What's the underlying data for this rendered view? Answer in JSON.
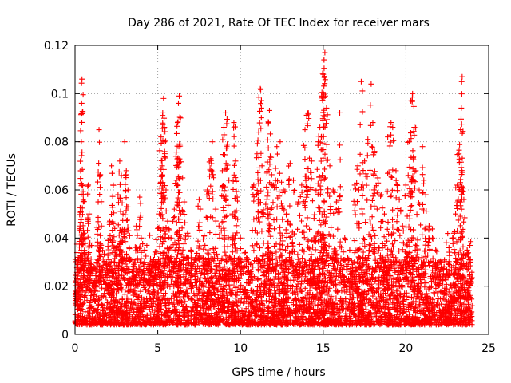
{
  "chart_data": {
    "type": "scatter",
    "title": "Day 286 of 2021, Rate Of TEC Index for receiver mars",
    "xlabel": "GPS time / hours",
    "ylabel": "ROTI / TECUs",
    "xlim": [
      0,
      25
    ],
    "ylim": [
      0,
      0.12
    ],
    "xticks": [
      0,
      5,
      10,
      15,
      20,
      25
    ],
    "xtick_labels": [
      "0",
      "5",
      "10",
      "15",
      "20",
      "25"
    ],
    "yticks": [
      0,
      0.02,
      0.04,
      0.06,
      0.08,
      0.1,
      0.12
    ],
    "ytick_labels": [
      "0",
      "0.02",
      "0.04",
      "0.06",
      "0.08",
      "0.1",
      "0.12"
    ],
    "grid": true,
    "legend": "none",
    "marker": "plus",
    "series_color": "#ff0000",
    "points": [
      [
        0.1,
        0.028
      ],
      [
        0.2,
        0.032
      ],
      [
        0.3,
        0.045
      ],
      [
        0.35,
        0.068
      ],
      [
        0.38,
        0.08
      ],
      [
        0.4,
        0.096
      ],
      [
        0.42,
        0.106
      ],
      [
        0.5,
        0.056
      ],
      [
        0.55,
        0.042
      ],
      [
        0.6,
        0.034
      ],
      [
        0.8,
        0.062
      ],
      [
        0.85,
        0.05
      ],
      [
        0.9,
        0.038
      ],
      [
        1.0,
        0.027
      ],
      [
        1.2,
        0.022
      ],
      [
        1.3,
        0.03
      ],
      [
        1.4,
        0.055
      ],
      [
        1.45,
        0.085
      ],
      [
        1.5,
        0.066
      ],
      [
        1.6,
        0.045
      ],
      [
        1.8,
        0.033
      ],
      [
        2.0,
        0.039
      ],
      [
        2.1,
        0.047
      ],
      [
        2.2,
        0.07
      ],
      [
        2.3,
        0.062
      ],
      [
        2.4,
        0.044
      ],
      [
        2.5,
        0.036
      ],
      [
        2.6,
        0.058
      ],
      [
        2.7,
        0.072
      ],
      [
        2.8,
        0.066
      ],
      [
        2.9,
        0.05
      ],
      [
        3.0,
        0.08
      ],
      [
        3.1,
        0.068
      ],
      [
        3.2,
        0.06
      ],
      [
        3.3,
        0.041
      ],
      [
        3.5,
        0.031
      ],
      [
        3.7,
        0.045
      ],
      [
        3.9,
        0.057
      ],
      [
        4.0,
        0.04
      ],
      [
        4.2,
        0.035
      ],
      [
        4.4,
        0.029
      ],
      [
        4.6,
        0.026
      ],
      [
        4.8,
        0.033
      ],
      [
        5.0,
        0.044
      ],
      [
        5.1,
        0.05
      ],
      [
        5.2,
        0.082
      ],
      [
        5.25,
        0.066
      ],
      [
        5.3,
        0.092
      ],
      [
        5.35,
        0.098
      ],
      [
        5.4,
        0.086
      ],
      [
        5.5,
        0.06
      ],
      [
        5.6,
        0.047
      ],
      [
        5.8,
        0.04
      ],
      [
        6.0,
        0.052
      ],
      [
        6.1,
        0.074
      ],
      [
        6.2,
        0.088
      ],
      [
        6.25,
        0.096
      ],
      [
        6.3,
        0.099
      ],
      [
        6.35,
        0.079
      ],
      [
        6.5,
        0.065
      ],
      [
        6.6,
        0.055
      ],
      [
        6.8,
        0.042
      ],
      [
        7.0,
        0.035
      ],
      [
        7.2,
        0.03
      ],
      [
        7.5,
        0.056
      ],
      [
        7.8,
        0.041
      ],
      [
        8.0,
        0.06
      ],
      [
        8.2,
        0.073
      ],
      [
        8.3,
        0.08
      ],
      [
        8.5,
        0.052
      ],
      [
        8.7,
        0.045
      ],
      [
        8.9,
        0.068
      ],
      [
        9.0,
        0.086
      ],
      [
        9.1,
        0.092
      ],
      [
        9.2,
        0.079
      ],
      [
        9.3,
        0.064
      ],
      [
        9.5,
        0.05
      ],
      [
        9.6,
        0.088
      ],
      [
        9.7,
        0.072
      ],
      [
        9.8,
        0.057
      ],
      [
        10.0,
        0.04
      ],
      [
        10.3,
        0.034
      ],
      [
        10.6,
        0.029
      ],
      [
        10.8,
        0.062
      ],
      [
        11.0,
        0.075
      ],
      [
        11.1,
        0.084
      ],
      [
        11.2,
        0.102
      ],
      [
        11.3,
        0.07
      ],
      [
        11.4,
        0.05
      ],
      [
        11.6,
        0.067
      ],
      [
        11.7,
        0.088
      ],
      [
        11.75,
        0.093
      ],
      [
        11.8,
        0.074
      ],
      [
        12.0,
        0.062
      ],
      [
        12.2,
        0.078
      ],
      [
        12.4,
        0.08
      ],
      [
        12.6,
        0.06
      ],
      [
        12.8,
        0.05
      ],
      [
        13.0,
        0.071
      ],
      [
        13.2,
        0.064
      ],
      [
        13.5,
        0.055
      ],
      [
        13.7,
        0.062
      ],
      [
        13.9,
        0.085
      ],
      [
        14.0,
        0.091
      ],
      [
        14.1,
        0.092
      ],
      [
        14.3,
        0.072
      ],
      [
        14.5,
        0.06
      ],
      [
        14.7,
        0.08
      ],
      [
        14.8,
        0.086
      ],
      [
        14.9,
        0.099
      ],
      [
        15.0,
        0.108
      ],
      [
        15.05,
        0.114
      ],
      [
        15.1,
        0.117
      ],
      [
        15.2,
        0.094
      ],
      [
        15.4,
        0.07
      ],
      [
        15.6,
        0.06
      ],
      [
        15.8,
        0.055
      ],
      [
        16.0,
        0.092
      ],
      [
        16.3,
        0.04
      ],
      [
        16.6,
        0.035
      ],
      [
        16.9,
        0.062
      ],
      [
        17.1,
        0.07
      ],
      [
        17.3,
        0.105
      ],
      [
        17.5,
        0.072
      ],
      [
        17.7,
        0.081
      ],
      [
        17.9,
        0.104
      ],
      [
        18.0,
        0.088
      ],
      [
        18.1,
        0.076
      ],
      [
        18.3,
        0.065
      ],
      [
        18.5,
        0.058
      ],
      [
        18.7,
        0.05
      ],
      [
        18.9,
        0.082
      ],
      [
        19.1,
        0.088
      ],
      [
        19.2,
        0.086
      ],
      [
        19.4,
        0.068
      ],
      [
        19.6,
        0.056
      ],
      [
        19.8,
        0.045
      ],
      [
        20.0,
        0.062
      ],
      [
        20.2,
        0.08
      ],
      [
        20.3,
        0.097
      ],
      [
        20.4,
        0.1
      ],
      [
        20.5,
        0.086
      ],
      [
        20.6,
        0.068
      ],
      [
        20.8,
        0.06
      ],
      [
        21.0,
        0.078
      ],
      [
        21.2,
        0.058
      ],
      [
        21.4,
        0.045
      ],
      [
        21.6,
        0.04
      ],
      [
        21.8,
        0.035
      ],
      [
        22.0,
        0.03
      ],
      [
        22.3,
        0.028
      ],
      [
        22.6,
        0.036
      ],
      [
        22.9,
        0.042
      ],
      [
        23.0,
        0.05
      ],
      [
        23.1,
        0.062
      ],
      [
        23.2,
        0.075
      ],
      [
        23.3,
        0.085
      ],
      [
        23.35,
        0.094
      ],
      [
        23.4,
        0.107
      ],
      [
        23.5,
        0.056
      ],
      [
        23.7,
        0.035
      ],
      [
        23.9,
        0.022
      ]
    ]
  }
}
